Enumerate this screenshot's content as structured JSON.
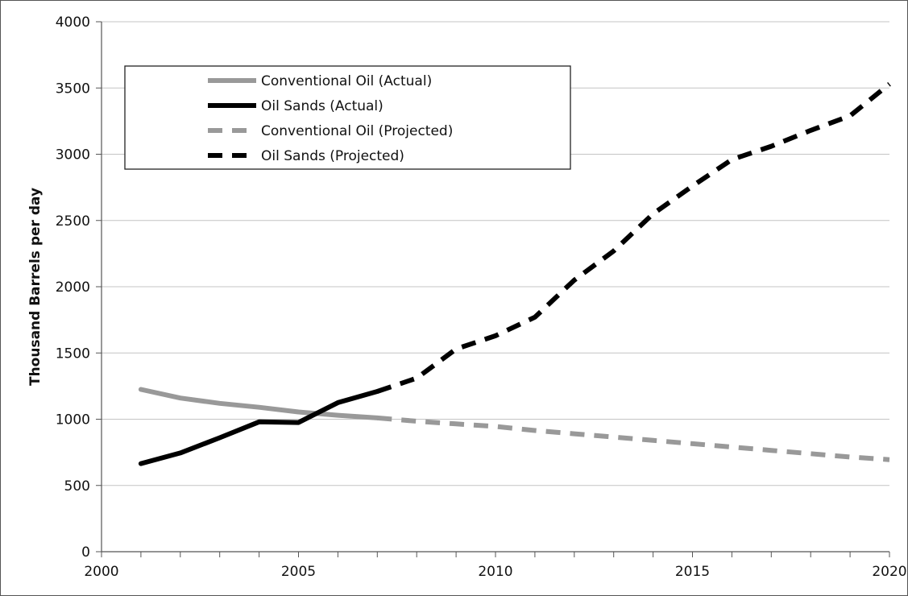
{
  "chart_data": {
    "type": "line",
    "title": "",
    "xlabel": "",
    "ylabel": "Thousand Barrels per day",
    "xlim": [
      2000,
      2020
    ],
    "ylim": [
      0,
      4000
    ],
    "x_ticks": [
      2000,
      2005,
      2010,
      2015,
      2020
    ],
    "y_ticks": [
      0,
      500,
      1000,
      1500,
      2000,
      2500,
      3000,
      3500,
      4000
    ],
    "grid": "horizontal",
    "legend_position": "top-left",
    "series": [
      {
        "name": "Conventional Oil (Actual)",
        "color": "#999999",
        "dash": "solid",
        "x": [
          2001,
          2002,
          2003,
          2004,
          2005,
          2006,
          2007
        ],
        "y": [
          1225,
          1160,
          1120,
          1090,
          1055,
          1030,
          1010
        ]
      },
      {
        "name": "Oil Sands (Actual)",
        "color": "#000000",
        "dash": "solid",
        "x": [
          2001,
          2002,
          2003,
          2004,
          2005,
          2006,
          2007
        ],
        "y": [
          665,
          745,
          860,
          980,
          975,
          1125,
          1210
        ]
      },
      {
        "name": "Conventional Oil (Projected)",
        "color": "#999999",
        "dash": "dashed",
        "x": [
          2007,
          2008,
          2009,
          2010,
          2011,
          2012,
          2013,
          2014,
          2015,
          2016,
          2017,
          2018,
          2019,
          2020
        ],
        "y": [
          1010,
          985,
          965,
          945,
          915,
          890,
          865,
          840,
          815,
          790,
          765,
          740,
          715,
          695
        ]
      },
      {
        "name": "Oil Sands (Projected)",
        "color": "#000000",
        "dash": "dashed",
        "x": [
          2007,
          2008,
          2009,
          2010,
          2011,
          2012,
          2013,
          2014,
          2015,
          2016,
          2017,
          2018,
          2019,
          2020
        ],
        "y": [
          1210,
          1310,
          1530,
          1630,
          1770,
          2050,
          2270,
          2550,
          2760,
          2960,
          3060,
          3180,
          3290,
          3530
        ]
      }
    ]
  }
}
